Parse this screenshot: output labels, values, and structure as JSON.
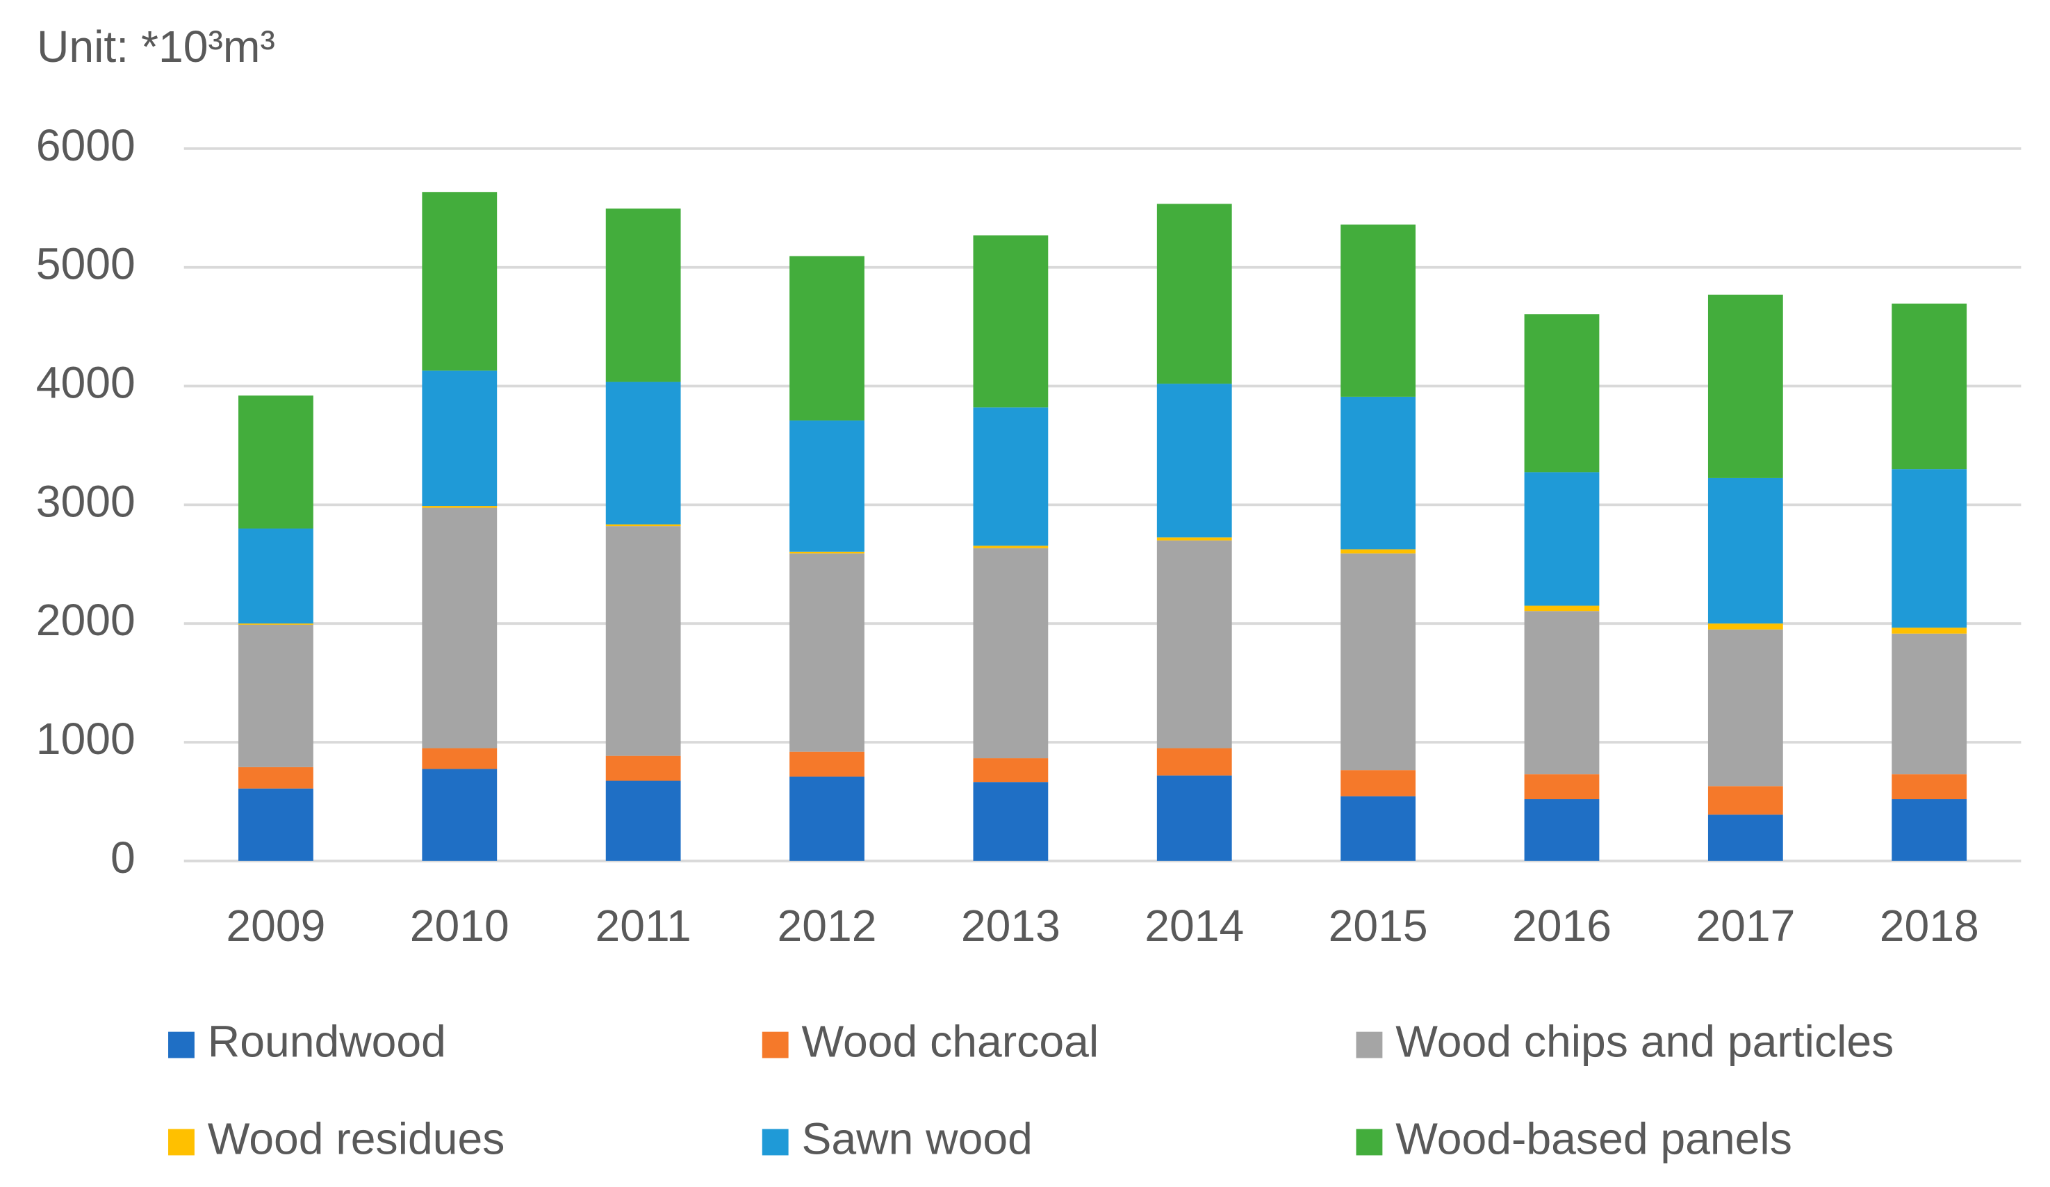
{
  "chart_data": {
    "type": "stacked-bar",
    "title": "Unit: *10³m³",
    "categories": [
      "2009",
      "2010",
      "2011",
      "2012",
      "2013",
      "2014",
      "2015",
      "2016",
      "2017",
      "2018"
    ],
    "series": [
      {
        "name": "Roundwood",
        "color": "#1f6fc5",
        "values": [
          610,
          775,
          675,
          710,
          665,
          720,
          545,
          520,
          390,
          520
        ]
      },
      {
        "name": "Wood charcoal",
        "color": "#f5792a",
        "values": [
          180,
          175,
          210,
          210,
          200,
          230,
          220,
          210,
          240,
          210
        ]
      },
      {
        "name": "Wood chips and particles",
        "color": "#a5a5a5",
        "values": [
          1200,
          2025,
          1935,
          1670,
          1770,
          1750,
          1825,
          1375,
          1320,
          1185
        ]
      },
      {
        "name": "Wood residues",
        "color": "#ffc000",
        "values": [
          10,
          15,
          15,
          15,
          20,
          25,
          35,
          45,
          50,
          50
        ]
      },
      {
        "name": "Sawn wood",
        "color": "#1f9ad7",
        "values": [
          800,
          1140,
          1200,
          1105,
          1165,
          1295,
          1285,
          1125,
          1225,
          1335
        ]
      },
      {
        "name": "Wood-based panels",
        "color": "#43ad3c",
        "values": [
          1120,
          1505,
          1460,
          1385,
          1450,
          1515,
          1450,
          1330,
          1545,
          1395
        ]
      }
    ],
    "ylim": [
      0,
      6000
    ],
    "yticks": [
      0,
      1000,
      2000,
      3000,
      4000,
      5000,
      6000
    ],
    "grid": true,
    "legend": "bottom"
  }
}
